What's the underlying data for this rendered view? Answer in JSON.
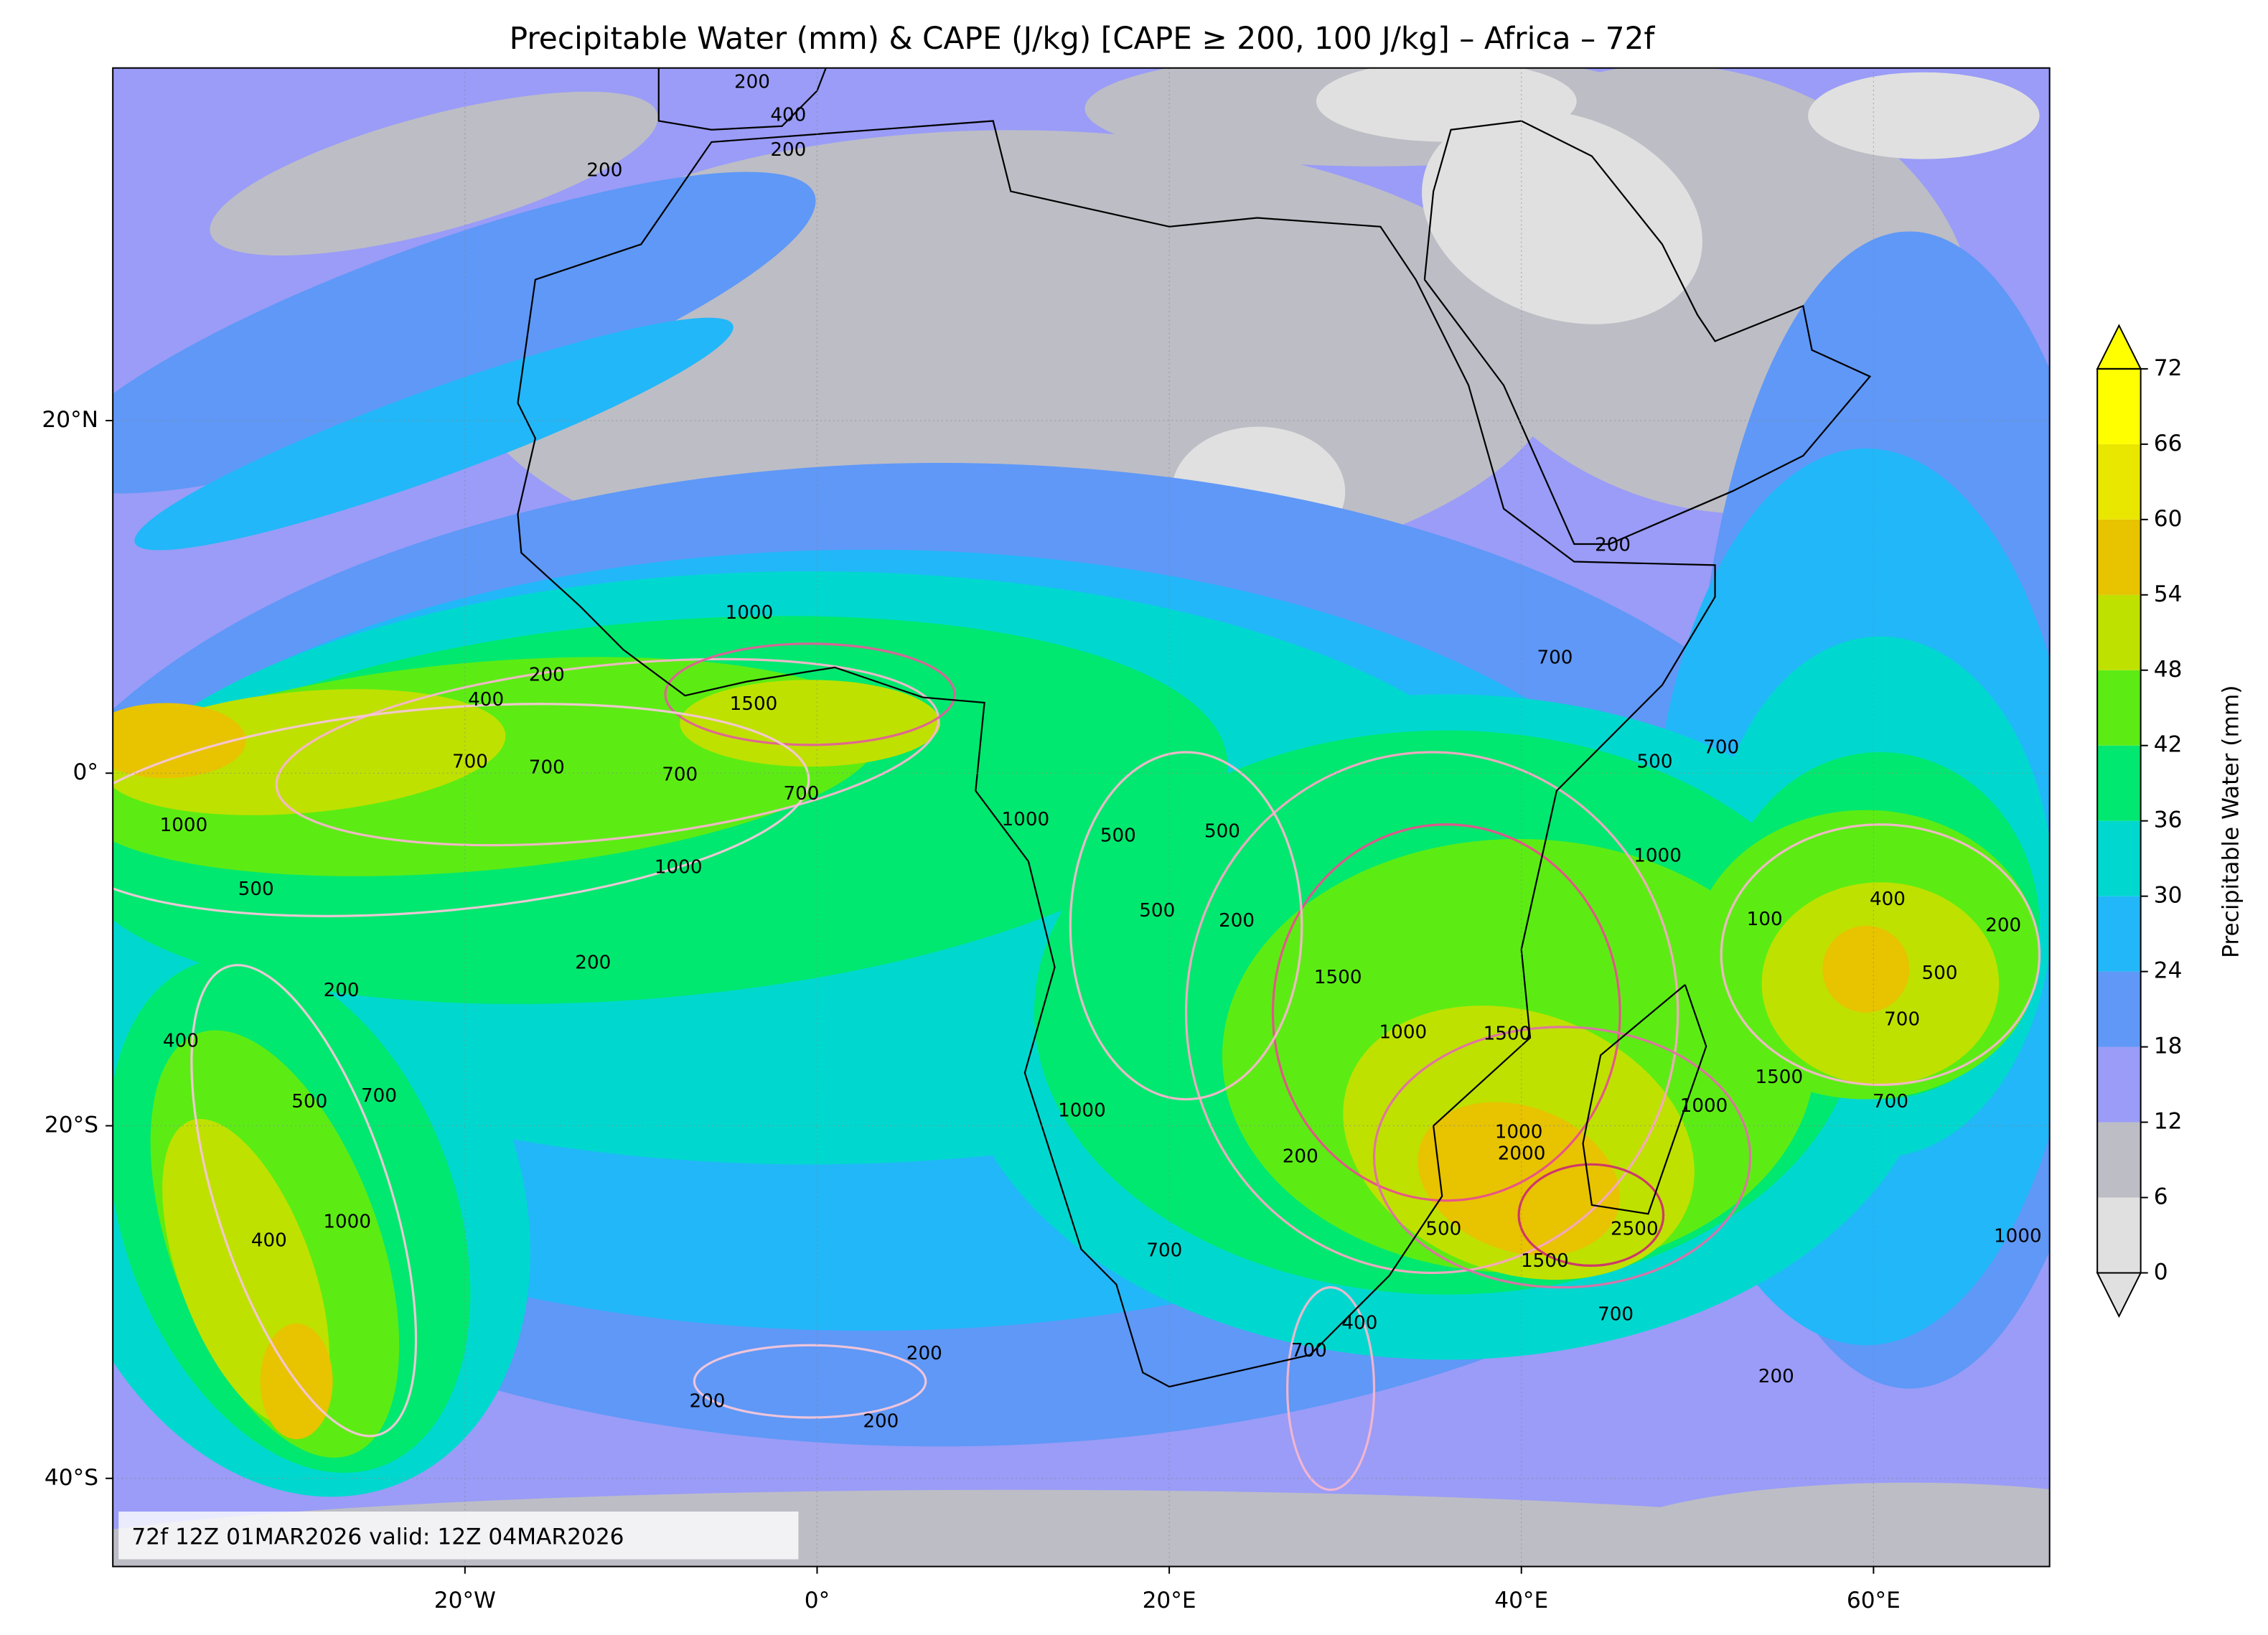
{
  "chart_data": {
    "type": "map",
    "title": "Precipitable Water (mm) & CAPE (J/kg) [CAPE ≥ 200, 100 J/kg] – Africa – 72f",
    "annotation": "72f 12Z 01MAR2026 valid: 12Z 04MAR2026",
    "xlim": [
      -40,
      70
    ],
    "ylim": [
      -45,
      40
    ],
    "xticks": [
      {
        "value": -20,
        "label": "20°W"
      },
      {
        "value": 0,
        "label": "0°"
      },
      {
        "value": 20,
        "label": "20°E"
      },
      {
        "value": 40,
        "label": "40°E"
      },
      {
        "value": 60,
        "label": "60°E"
      }
    ],
    "yticks": [
      {
        "value": 20,
        "label": "20°N"
      },
      {
        "value": 0,
        "label": "0°"
      },
      {
        "value": -20,
        "label": "20°S"
      },
      {
        "value": -40,
        "label": "40°S"
      }
    ],
    "grid": true,
    "colorbar": {
      "label": "Precipitable Water (mm)",
      "levels": [
        0,
        6,
        12,
        18,
        24,
        30,
        36,
        42,
        48,
        54,
        60,
        66,
        72
      ],
      "colors": [
        "#e0e0e0",
        "#bdbdc6",
        "#9a9cf7",
        "#5f98f7",
        "#22b7f8",
        "#00d8cf",
        "#00e86f",
        "#5cec14",
        "#bfe100",
        "#e7c300",
        "#e9e600",
        "#ffff00"
      ],
      "extend": "both"
    },
    "contour_color": "#f5a9c9",
    "contour_labels": [
      200,
      400,
      200,
      200,
      400,
      200,
      1000,
      1500,
      700,
      700,
      700,
      700,
      1000,
      1000,
      1000,
      500,
      200,
      200,
      500,
      500,
      500,
      200,
      1500,
      1000,
      1500,
      700,
      500,
      700,
      1000,
      100,
      400,
      200,
      500,
      700,
      1500,
      700,
      1000,
      1000,
      2000,
      2500,
      1500,
      700,
      500,
      400,
      700,
      200,
      1000,
      700,
      200,
      200,
      200,
      200,
      200,
      1000,
      400,
      500,
      700,
      400,
      1000
    ]
  }
}
